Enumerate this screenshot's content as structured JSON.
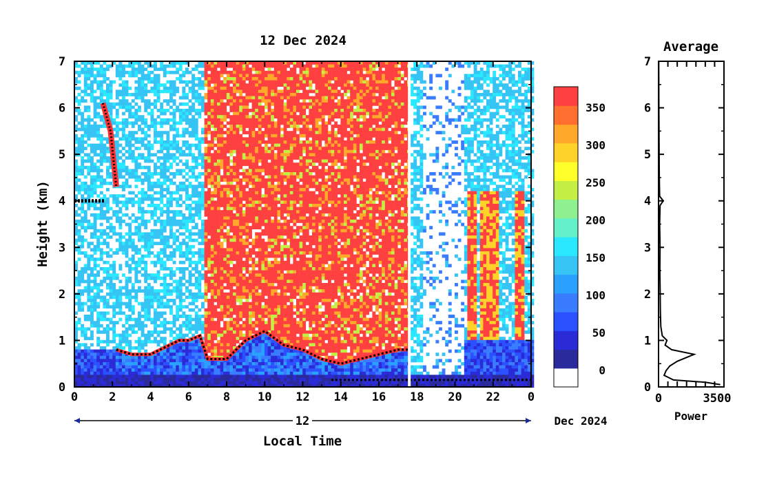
{
  "chart_data": [
    {
      "type": "heatmap",
      "title": "12 Dec 2024",
      "xlabel": "Local Time",
      "ylabel": "Height (km)",
      "xticks": [
        "0",
        "2",
        "4",
        "6",
        "8",
        "10",
        "12",
        "14",
        "16",
        "18",
        "20",
        "22",
        "0"
      ],
      "yticks": [
        "0",
        "1",
        "2",
        "3",
        "4",
        "5",
        "6",
        "7"
      ],
      "date_bar_label": "12",
      "date_suffix": "Dec 2024",
      "xlim": [
        0,
        24
      ],
      "ylim": [
        0,
        7
      ],
      "colorbar": {
        "ticks": [
          "0",
          "50",
          "100",
          "150",
          "200",
          "250",
          "300",
          "350"
        ],
        "colors": [
          "#ffffff",
          "#2a2a9c",
          "#2a2ad6",
          "#2a50ff",
          "#3a7cff",
          "#2aa0ff",
          "#36c4f4",
          "#2ae8ff",
          "#64f0c8",
          "#8ef08e",
          "#c4f046",
          "#ffff2a",
          "#ffd22a",
          "#ffa82a",
          "#ff7030",
          "#ff4040"
        ]
      },
      "features": {
        "high_power_period_hours": [
          6.8,
          17.6
        ],
        "boundary_layer_height_km": [
          [
            2.2,
            0.8
          ],
          [
            3.0,
            0.7
          ],
          [
            4.0,
            0.7
          ],
          [
            5.0,
            0.9
          ],
          [
            5.5,
            1.0
          ],
          [
            6.0,
            1.0
          ],
          [
            6.6,
            1.1
          ],
          [
            7.0,
            0.6
          ],
          [
            8.0,
            0.6
          ],
          [
            9.0,
            1.0
          ],
          [
            10.0,
            1.2
          ],
          [
            11.0,
            0.9
          ],
          [
            12.0,
            0.8
          ],
          [
            13.0,
            0.6
          ],
          [
            14.0,
            0.5
          ],
          [
            15.0,
            0.6
          ],
          [
            16.0,
            0.7
          ],
          [
            17.0,
            0.8
          ],
          [
            17.6,
            0.8
          ]
        ],
        "elevated_layer": {
          "start_hour": 0.0,
          "end_hour": 1.6,
          "height_km": 4.0
        },
        "descending_layer": [
          [
            1.5,
            6.1
          ],
          [
            1.9,
            5.5
          ],
          [
            2.2,
            4.3
          ]
        ],
        "surface_layer_height_km": 0.15,
        "vertical_streaks_hours": [
          20.8,
          21.5,
          21.9,
          23.2
        ]
      }
    },
    {
      "type": "line",
      "title": "Average",
      "xlabel": "Power",
      "xticks": [
        "0",
        "3500"
      ],
      "yticks": [
        "0",
        "1",
        "2",
        "3",
        "4",
        "5",
        "6",
        "7"
      ],
      "xlim": [
        0,
        3500
      ],
      "ylim": [
        0,
        7
      ],
      "x": [
        3300,
        2500,
        800,
        300,
        400,
        600,
        1000,
        1900,
        700,
        350,
        450,
        200,
        120,
        100,
        90,
        70,
        80,
        60,
        80,
        250,
        60,
        40,
        30,
        20,
        10
      ],
      "y": [
        0.05,
        0.1,
        0.15,
        0.25,
        0.35,
        0.45,
        0.55,
        0.7,
        0.8,
        0.9,
        1.0,
        1.1,
        1.3,
        1.6,
        2.0,
        2.5,
        3.0,
        3.5,
        3.9,
        4.0,
        4.1,
        4.5,
        5.2,
        6.0,
        7.0
      ]
    }
  ]
}
